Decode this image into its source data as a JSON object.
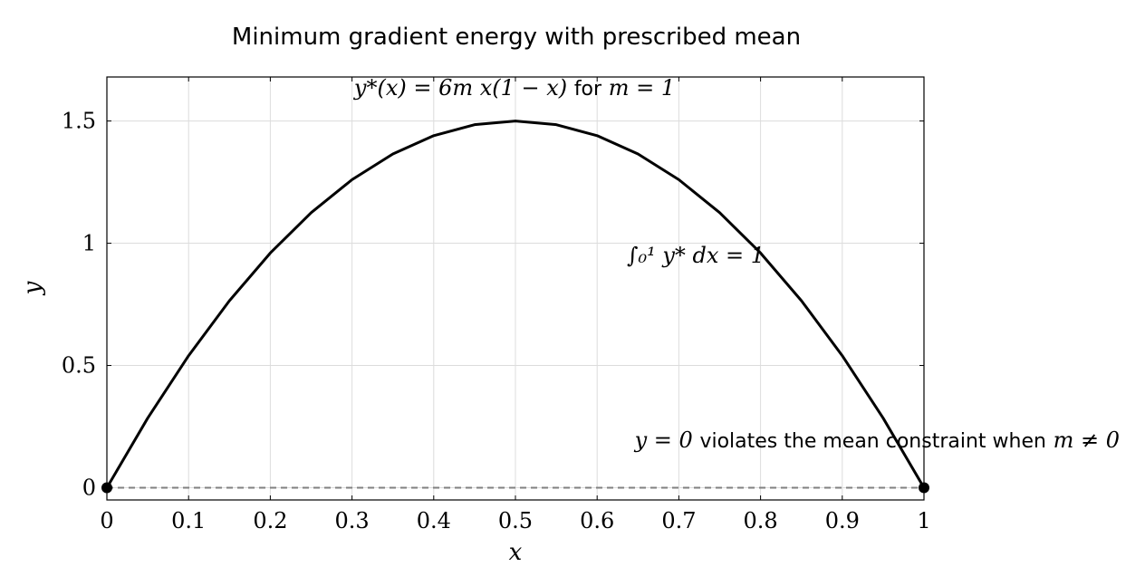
{
  "chart_data": {
    "type": "line",
    "title": "Minimum gradient energy with prescribed mean",
    "xlabel": "x",
    "ylabel": "y",
    "xlim": [
      0,
      1
    ],
    "ylim": [
      -0.05,
      1.68
    ],
    "grid": true,
    "x_ticks": [
      "0",
      "0.1",
      "0.2",
      "0.3",
      "0.4",
      "0.5",
      "0.6",
      "0.7",
      "0.8",
      "0.9",
      "1"
    ],
    "y_ticks": [
      "0",
      "0.5",
      "1",
      "1.5"
    ],
    "series": [
      {
        "style": "solid",
        "color": "#000000",
        "x": [
          0,
          0.05,
          0.1,
          0.15,
          0.2,
          0.25,
          0.3,
          0.35,
          0.4,
          0.45,
          0.5,
          0.55,
          0.6,
          0.65,
          0.7,
          0.75,
          0.8,
          0.85,
          0.9,
          0.95,
          1
        ],
        "y": [
          0,
          0.285,
          0.54,
          0.765,
          0.96,
          1.125,
          1.26,
          1.365,
          1.44,
          1.485,
          1.5,
          1.485,
          1.44,
          1.365,
          1.26,
          1.125,
          0.96,
          0.765,
          0.54,
          0.285,
          0
        ]
      },
      {
        "style": "dashed",
        "color": "#808080",
        "x": [
          0,
          1
        ],
        "y": [
          0,
          0
        ]
      }
    ],
    "markers": [
      {
        "x": 0,
        "y": 0
      },
      {
        "x": 1,
        "y": 0
      }
    ],
    "annotations": {
      "formula_math": "y*(x) = 6m x(1 − x)",
      "formula_text": "for",
      "formula_tail": "m = 1",
      "integral": "∫₀¹ y* dx = 1",
      "zero_lhs": "y = 0",
      "zero_text": "violates the mean constraint when",
      "zero_rhs": "m ≠ 0"
    }
  }
}
